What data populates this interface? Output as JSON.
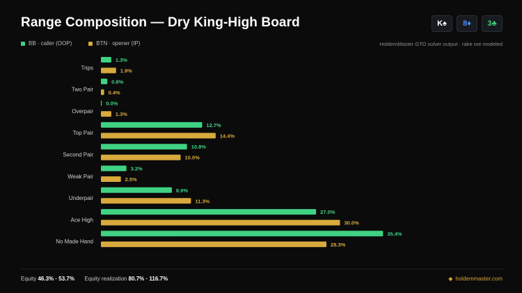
{
  "header": {
    "title": "Range Composition — Dry King-High Board",
    "cards": [
      {
        "rank": "K",
        "suit": "♠",
        "color": "#ffffff",
        "icon": "spade-icon"
      },
      {
        "rank": "8",
        "suit": "♦",
        "color": "#4c8df6",
        "icon": "diamond-icon"
      },
      {
        "rank": "3",
        "suit": "♣",
        "color": "#3ecf7a",
        "icon": "club-icon"
      }
    ],
    "source": "HoldemMaster GTO solver output · rake not modeled"
  },
  "colors": {
    "bb": "#3fd283",
    "btn": "#d8a93c",
    "background": "#0b0b0b"
  },
  "chart_data": {
    "type": "bar",
    "orientation": "horizontal",
    "categories": [
      "Trips",
      "Two Pair",
      "Overpair",
      "Top Pair",
      "Second Pair",
      "Weak Pair",
      "Underpair",
      "Ace High",
      "No Made Hand"
    ],
    "series": [
      {
        "name": "BB · caller (OOP)",
        "values": [
          1.3,
          0.8,
          0.0,
          12.7,
          10.8,
          3.2,
          8.9,
          27.0,
          35.4
        ],
        "labels": [
          "1.3%",
          "0.8%",
          "0.0%",
          "12.7%",
          "10.8%",
          "3.2%",
          "8.9%",
          "27.0%",
          "35.4%"
        ]
      },
      {
        "name": "BTN · opener (IP)",
        "values": [
          1.9,
          0.4,
          1.3,
          14.4,
          10.0,
          2.5,
          11.3,
          30.0,
          28.3
        ],
        "labels": [
          "1.9%",
          "0.4%",
          "1.3%",
          "14.4%",
          "10.0%",
          "2.5%",
          "11.3%",
          "30.0%",
          "28.3%"
        ]
      }
    ],
    "xlim": [
      0,
      50
    ],
    "unit": "%",
    "legend": "top-left",
    "grid": false
  },
  "footer": {
    "equity_label": "Equity",
    "equity_value": "46.3% · 53.7%",
    "realization_label": "Equity realization",
    "realization_value": "80.7% · 116.7%",
    "brand": "holdemmaster.com"
  }
}
